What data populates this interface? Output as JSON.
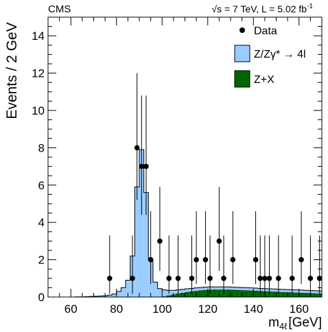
{
  "header": {
    "experiment": "CMS",
    "energy_lumi": "√s = 7 TeV, L = 5.02 fb",
    "lumi_exponent": "-1"
  },
  "chart_data": {
    "type": "bar",
    "stacked": true,
    "xlabel_main": "m",
    "xlabel_sub": "4ℓ",
    "xlabel_unit": "[GeV]",
    "ylabel": "Events / 2 GeV",
    "xlim": [
      50,
      170
    ],
    "ylim": [
      0,
      15
    ],
    "x_ticks": [
      60,
      80,
      100,
      120,
      140,
      160
    ],
    "y_ticks": [
      0,
      2,
      4,
      6,
      8,
      10,
      12,
      14
    ],
    "grid": false,
    "legend_position": "top-right",
    "legend": [
      {
        "label": "Data",
        "marker": "dot"
      },
      {
        "label": "Z/Zγ* → 4l",
        "marker": "box",
        "color": "#99ccff"
      },
      {
        "label": "Z+X",
        "marker": "box",
        "color": "#006600"
      }
    ],
    "colors": {
      "zz": "#99ccff",
      "zx": "#006600"
    },
    "bin_width": 2,
    "bins_low": [
      50,
      52,
      54,
      56,
      58,
      60,
      62,
      64,
      66,
      68,
      70,
      72,
      74,
      76,
      78,
      80,
      82,
      84,
      86,
      88,
      90,
      92,
      94,
      96,
      98,
      100,
      102,
      104,
      106,
      108,
      110,
      112,
      114,
      116,
      118,
      120,
      122,
      124,
      126,
      128,
      130,
      132,
      134,
      136,
      138,
      140,
      142,
      144,
      146,
      148,
      150,
      152,
      154,
      156,
      158,
      160,
      162,
      164,
      166,
      168
    ],
    "series": [
      {
        "name": "Z+X",
        "color": "#006600",
        "values": [
          0,
          0,
          0,
          0,
          0,
          0,
          0,
          0,
          0,
          0,
          0,
          0,
          0,
          0,
          0,
          0,
          0,
          0,
          0,
          0,
          0,
          0,
          0,
          0,
          0,
          0.03,
          0.08,
          0.13,
          0.18,
          0.22,
          0.26,
          0.29,
          0.32,
          0.35,
          0.37,
          0.38,
          0.39,
          0.39,
          0.39,
          0.39,
          0.38,
          0.37,
          0.36,
          0.35,
          0.34,
          0.33,
          0.31,
          0.3,
          0.29,
          0.28,
          0.27,
          0.26,
          0.25,
          0.24,
          0.23,
          0.22,
          0.21,
          0.2,
          0.19,
          0.18
        ]
      },
      {
        "name": "Z/Zγ* → 4l",
        "color": "#99ccff",
        "values": [
          0,
          0,
          0,
          0,
          0,
          0,
          0.01,
          0.01,
          0.02,
          0.03,
          0.04,
          0.05,
          0.07,
          0.1,
          0.16,
          0.3,
          0.5,
          0.9,
          2.2,
          5.9,
          7.9,
          5.6,
          2.0,
          0.8,
          0.45,
          0.35,
          0.28,
          0.23,
          0.2,
          0.19,
          0.18,
          0.17,
          0.17,
          0.16,
          0.16,
          0.16,
          0.15,
          0.15,
          0.15,
          0.15,
          0.15,
          0.15,
          0.15,
          0.15,
          0.15,
          0.15,
          0.15,
          0.15,
          0.15,
          0.15,
          0.15,
          0.15,
          0.15,
          0.15,
          0.15,
          0.15,
          0.15,
          0.15,
          0.15,
          0.15
        ]
      }
    ],
    "data_points": [
      {
        "x": 77,
        "y": 1,
        "err_low": 0.83,
        "err_high": 2.3
      },
      {
        "x": 87,
        "y": 1,
        "err_low": 0.83,
        "err_high": 2.3
      },
      {
        "x": 89,
        "y": 8,
        "err_low": 2.8,
        "err_high": 4.0
      },
      {
        "x": 91,
        "y": 7,
        "err_low": 2.6,
        "err_high": 3.8
      },
      {
        "x": 93,
        "y": 7,
        "err_low": 2.6,
        "err_high": 3.8
      },
      {
        "x": 95,
        "y": 2,
        "err_low": 1.3,
        "err_high": 2.6
      },
      {
        "x": 99,
        "y": 3,
        "err_low": 1.6,
        "err_high": 2.9
      },
      {
        "x": 103,
        "y": 1,
        "err_low": 0.83,
        "err_high": 2.3
      },
      {
        "x": 107,
        "y": 1,
        "err_low": 0.83,
        "err_high": 2.3
      },
      {
        "x": 113,
        "y": 1,
        "err_low": 0.83,
        "err_high": 2.3
      },
      {
        "x": 115,
        "y": 2,
        "err_low": 1.3,
        "err_high": 2.6
      },
      {
        "x": 119,
        "y": 2,
        "err_low": 1.3,
        "err_high": 2.6
      },
      {
        "x": 121,
        "y": 1,
        "err_low": 0.83,
        "err_high": 2.3
      },
      {
        "x": 125,
        "y": 3,
        "err_low": 1.6,
        "err_high": 2.9
      },
      {
        "x": 127,
        "y": 1,
        "err_low": 0.83,
        "err_high": 2.3
      },
      {
        "x": 131,
        "y": 2,
        "err_low": 1.3,
        "err_high": 2.6
      },
      {
        "x": 141,
        "y": 2,
        "err_low": 1.3,
        "err_high": 2.6
      },
      {
        "x": 143,
        "y": 1,
        "err_low": 0.83,
        "err_high": 2.3
      },
      {
        "x": 145,
        "y": 1,
        "err_low": 0.83,
        "err_high": 2.3
      },
      {
        "x": 147,
        "y": 1,
        "err_low": 0.83,
        "err_high": 2.3
      },
      {
        "x": 151,
        "y": 1,
        "err_low": 0.83,
        "err_high": 2.3
      },
      {
        "x": 157,
        "y": 1,
        "err_low": 0.83,
        "err_high": 2.3
      },
      {
        "x": 161,
        "y": 2,
        "err_low": 1.3,
        "err_high": 2.6
      },
      {
        "x": 165,
        "y": 1,
        "err_low": 0.83,
        "err_high": 2.3
      },
      {
        "x": 169,
        "y": 1,
        "err_low": 0.83,
        "err_high": 2.3
      }
    ]
  }
}
